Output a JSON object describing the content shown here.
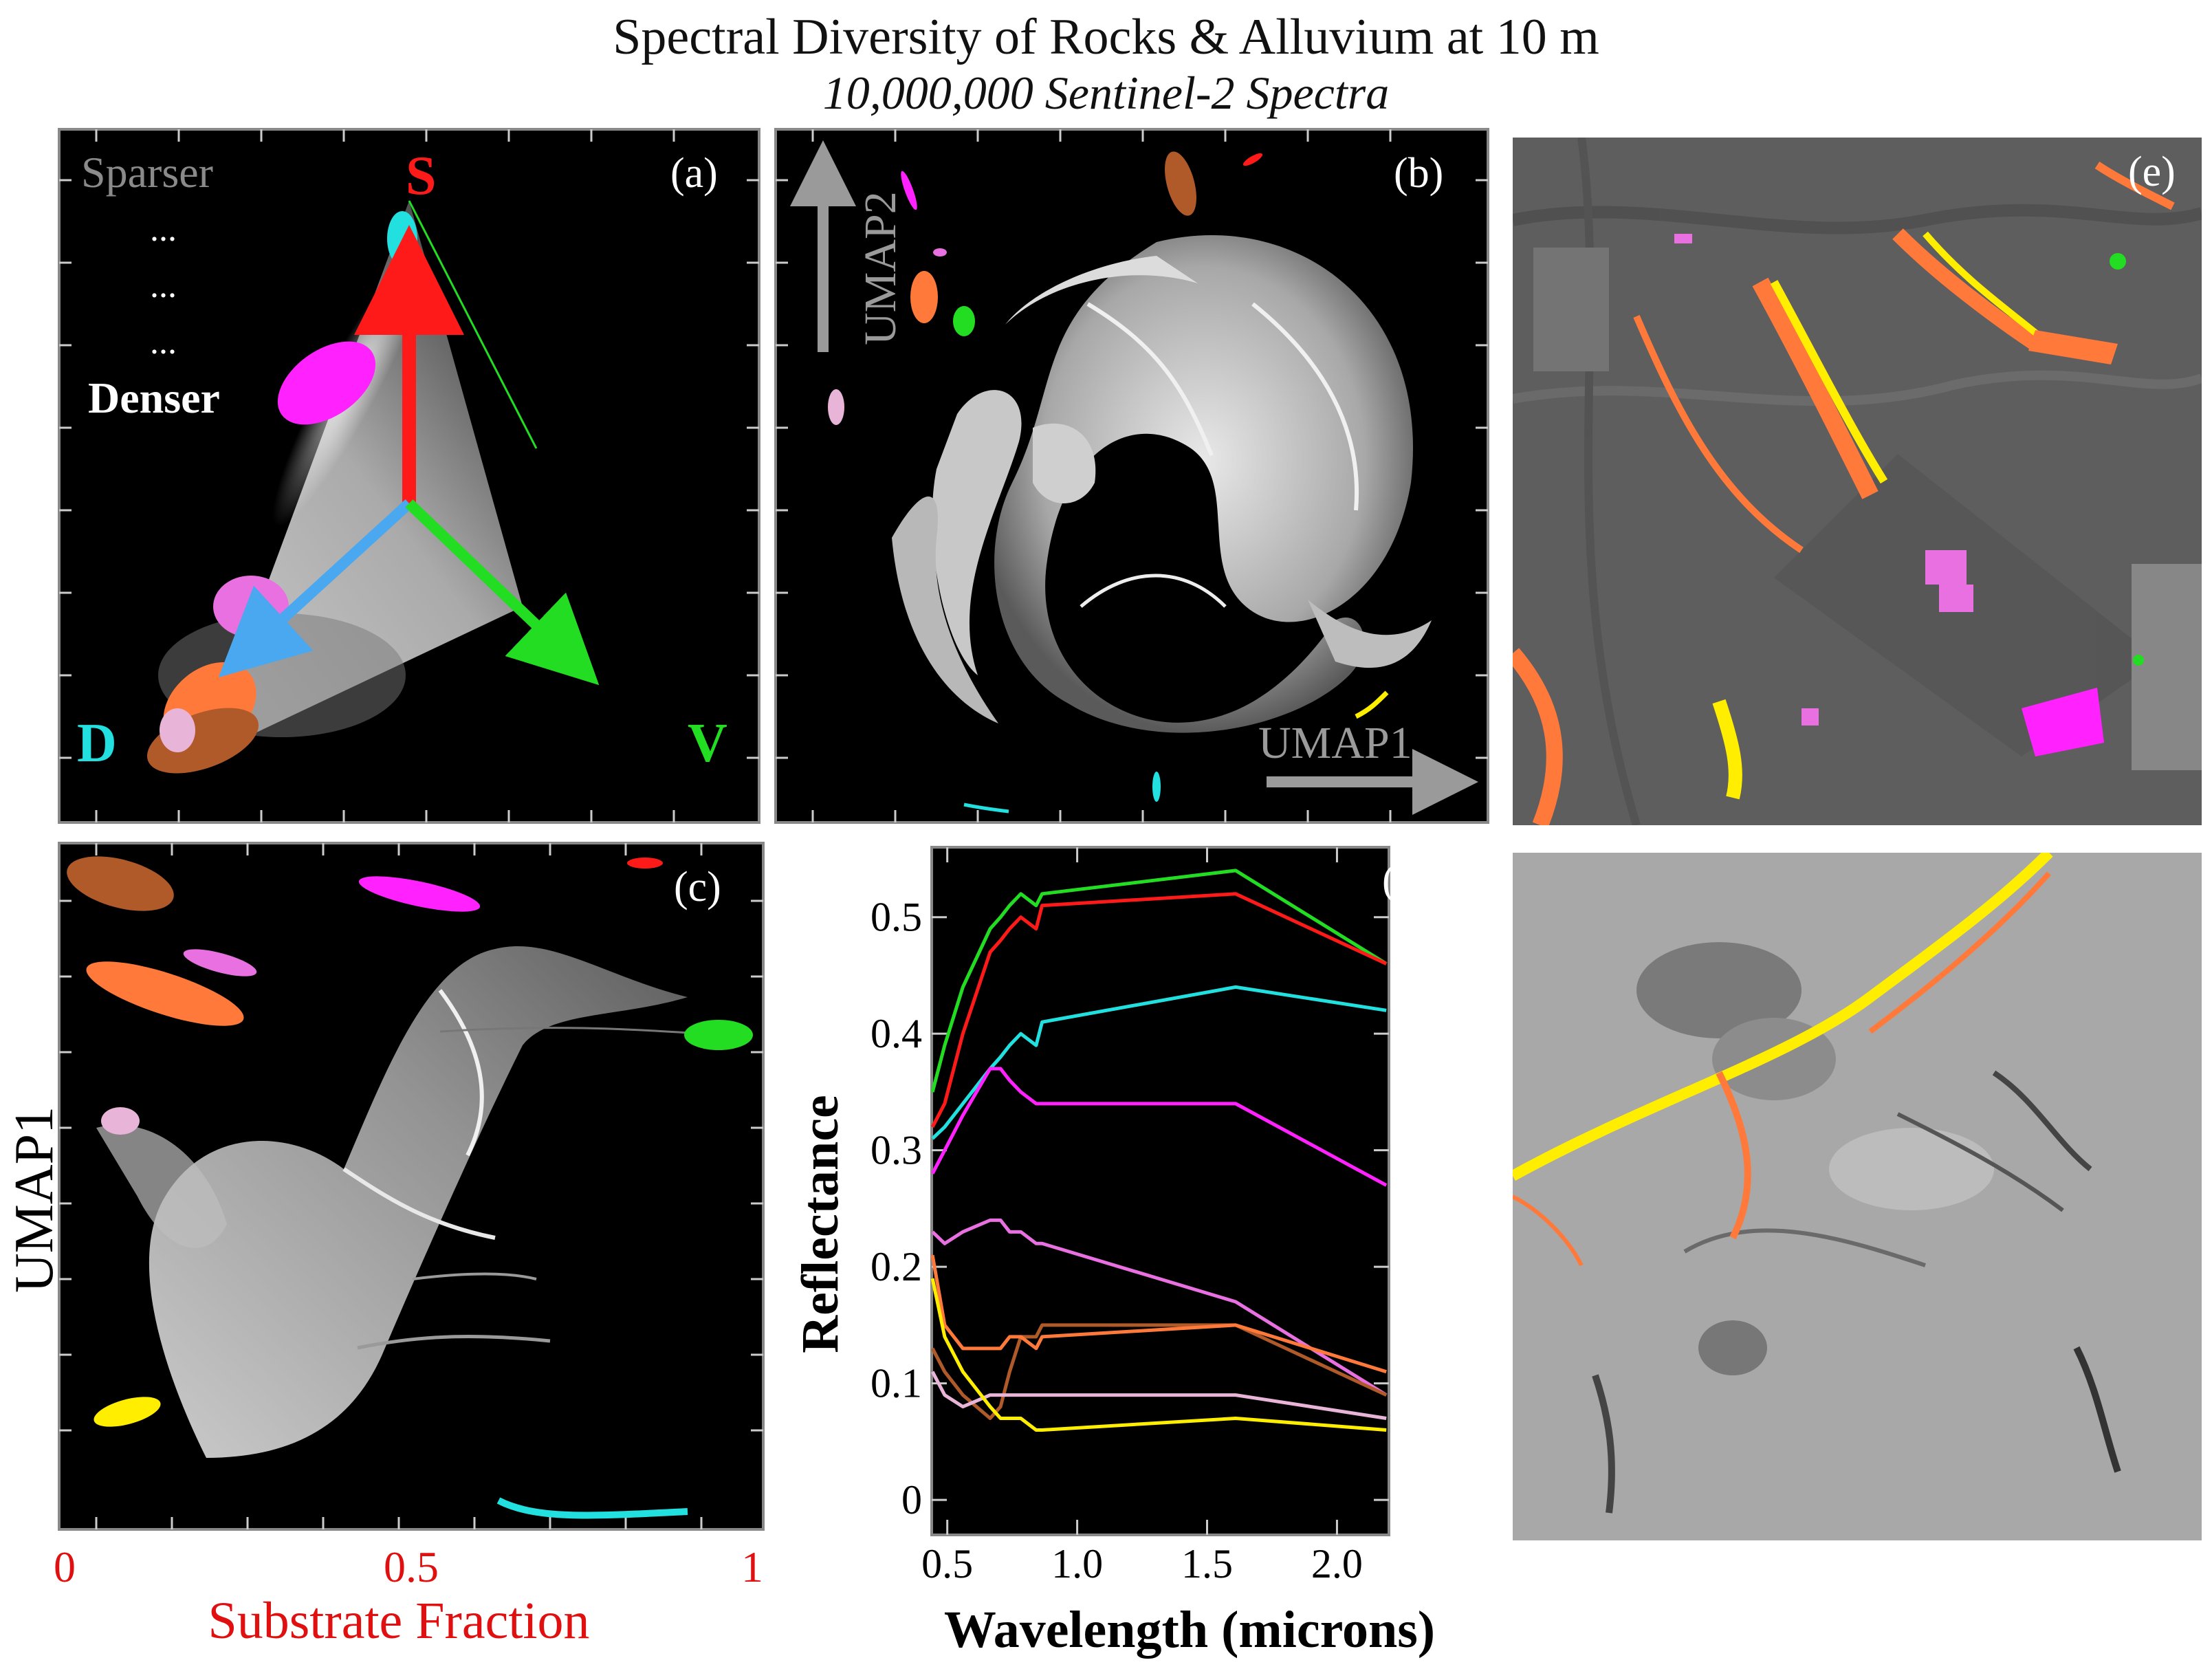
{
  "figure": {
    "title": "Spectral Diversity of Rocks & Alluvium at 10 m",
    "subtitle": "10,000,000 Sentinel-2 Spectra"
  },
  "colors": {
    "red": "#ff1a1a",
    "green": "#22dd22",
    "cyan": "#22e0e0",
    "magenta": "#ff22ff",
    "pink": "#e870e0",
    "orange": "#ff7a3a",
    "brown": "#b05a2a",
    "lightpink": "#e8b4d8",
    "yellow": "#ffee00",
    "blue": "#4aa8f0",
    "gray": "#9a9a9a"
  },
  "panels": {
    "a": {
      "label": "(a)",
      "legend_top": "Sparser",
      "legend_dots": [
        "...",
        "...",
        "..."
      ],
      "legend_bottom": "Denser",
      "vertex_s": "S",
      "vertex_d": "D",
      "vertex_v": "V"
    },
    "b": {
      "label": "(b)",
      "axis_x": "UMAP1",
      "axis_y": "UMAP2"
    },
    "c": {
      "label": "(c)",
      "ylabel": "UMAP1",
      "xlabel": "Substrate Fraction",
      "xticks": [
        "0",
        "0.5",
        "1"
      ]
    },
    "e": {
      "label": "(e)"
    }
  },
  "chart_data": {
    "type": "line",
    "label": "(d)",
    "xlabel": "Wavelength (microns)",
    "ylabel": "Reflectance",
    "xlim": [
      0.44,
      2.2
    ],
    "ylim": [
      -0.03,
      0.56
    ],
    "xticks": [
      0.5,
      1.0,
      1.5,
      2.0
    ],
    "xtick_labels": [
      "0.5",
      "1.0",
      "1.5",
      "2.0"
    ],
    "yticks": [
      0,
      0.1,
      0.2,
      0.3,
      0.4,
      0.5
    ],
    "ytick_labels": [
      "0",
      "0.1",
      "0.2",
      "0.3",
      "0.4",
      "0.5"
    ],
    "grid": false,
    "x": [
      0.443,
      0.49,
      0.56,
      0.665,
      0.705,
      0.74,
      0.783,
      0.842,
      0.865,
      1.61,
      2.19
    ],
    "series": [
      {
        "color": "#22dd22",
        "values": [
          0.35,
          0.39,
          0.44,
          0.49,
          0.5,
          0.51,
          0.52,
          0.51,
          0.52,
          0.54,
          0.46
        ]
      },
      {
        "color": "#ff1a1a",
        "values": [
          0.32,
          0.34,
          0.4,
          0.47,
          0.48,
          0.49,
          0.5,
          0.49,
          0.51,
          0.52,
          0.46
        ]
      },
      {
        "color": "#22e0e0",
        "values": [
          0.31,
          0.32,
          0.34,
          0.37,
          0.38,
          0.39,
          0.4,
          0.39,
          0.41,
          0.44,
          0.42
        ]
      },
      {
        "color": "#ff22ff",
        "values": [
          0.28,
          0.3,
          0.33,
          0.37,
          0.37,
          0.36,
          0.35,
          0.34,
          0.34,
          0.34,
          0.27
        ]
      },
      {
        "color": "#e870e0",
        "values": [
          0.23,
          0.22,
          0.23,
          0.24,
          0.24,
          0.23,
          0.23,
          0.22,
          0.22,
          0.17,
          0.09
        ]
      },
      {
        "color": "#b05a2a",
        "values": [
          0.13,
          0.11,
          0.09,
          0.07,
          0.08,
          0.11,
          0.14,
          0.14,
          0.15,
          0.15,
          0.09
        ]
      },
      {
        "color": "#ff7a3a",
        "values": [
          0.21,
          0.15,
          0.13,
          0.13,
          0.13,
          0.14,
          0.14,
          0.13,
          0.14,
          0.15,
          0.11
        ]
      },
      {
        "color": "#e8b4d8",
        "values": [
          0.11,
          0.09,
          0.08,
          0.09,
          0.09,
          0.09,
          0.09,
          0.09,
          0.09,
          0.09,
          0.07
        ]
      },
      {
        "color": "#ffee00",
        "values": [
          0.19,
          0.14,
          0.11,
          0.08,
          0.07,
          0.07,
          0.07,
          0.06,
          0.06,
          0.07,
          0.06
        ]
      }
    ]
  }
}
